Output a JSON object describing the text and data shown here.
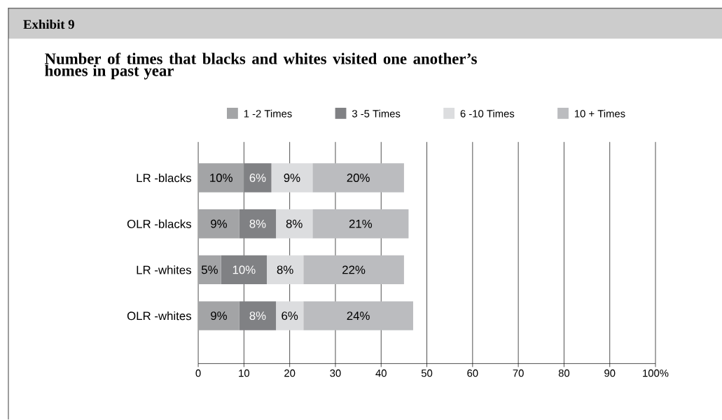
{
  "chart_data": {
    "type": "bar",
    "orientation": "horizontal",
    "stacked": true,
    "title": "Exhibit 9",
    "subtitle": "Number of times that blacks and whites visited one another’s homes in past year",
    "categories": [
      "LR -blacks",
      "OLR -blacks",
      "LR -whites",
      "OLR -whites"
    ],
    "series": [
      {
        "name": "1 -2 Times",
        "color": "#a3a4a6",
        "values": [
          10,
          9,
          5,
          9
        ],
        "value_labels": [
          "10%",
          "9%",
          "5%",
          "9%"
        ]
      },
      {
        "name": "3 -5 Times",
        "color": "#808184",
        "values": [
          6,
          8,
          10,
          8
        ],
        "value_labels": [
          "6%",
          "8%",
          "10%",
          "8%"
        ]
      },
      {
        "name": "6 -10 Times",
        "color": "#dcdddf",
        "values": [
          9,
          8,
          8,
          6
        ],
        "value_labels": [
          "9%",
          "8%",
          "8%",
          "6%"
        ]
      },
      {
        "name": "10 + Times",
        "color": "#bbbcbf",
        "values": [
          20,
          21,
          22,
          24
        ],
        "value_labels": [
          "20%",
          "21%",
          "22%",
          "24%"
        ]
      }
    ],
    "xlim": [
      0,
      100
    ],
    "xticks": [
      0,
      10,
      20,
      30,
      40,
      50,
      60,
      70,
      80,
      90,
      {
        "value": 100,
        "label": "100%"
      }
    ],
    "grid": "x",
    "legend": "top"
  }
}
